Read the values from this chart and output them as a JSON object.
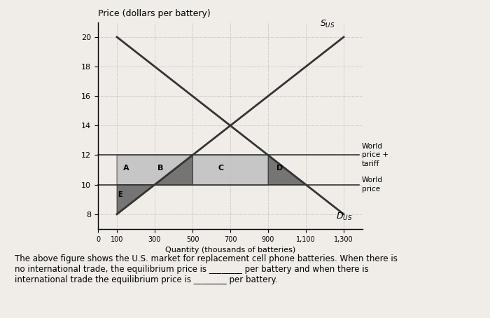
{
  "title": "Price (dollars per battery)",
  "xlabel": "Quantity (thousands of batteries)",
  "xlim": [
    0,
    1400
  ],
  "ylim": [
    7,
    21
  ],
  "xticks": [
    0,
    100,
    300,
    500,
    700,
    900,
    1100,
    1300
  ],
  "yticks": [
    8,
    10,
    12,
    14,
    16,
    18,
    20
  ],
  "world_price": 10,
  "world_price_tariff": 12,
  "supply_points": [
    [
      100,
      8
    ],
    [
      1300,
      20
    ]
  ],
  "demand_points": [
    [
      100,
      20
    ],
    [
      1300,
      8
    ]
  ],
  "world_price_label": "World\nprice",
  "world_price_tariff_label": "World\nprice +\ntariff",
  "region_labels": [
    "A",
    "B",
    "C",
    "D",
    "E"
  ],
  "color_dark": "#606060",
  "color_light": "#c0c0c0",
  "color_line": "#333333",
  "figsize": [
    7.0,
    4.54
  ],
  "dpi": 100,
  "caption": "The above figure shows the U.S. market for replacement cell phone batteries. When there is\nno international trade, the equilibrium price is ________ per battery and when there is\ninternational trade the equilibrium price is ________ per battery."
}
